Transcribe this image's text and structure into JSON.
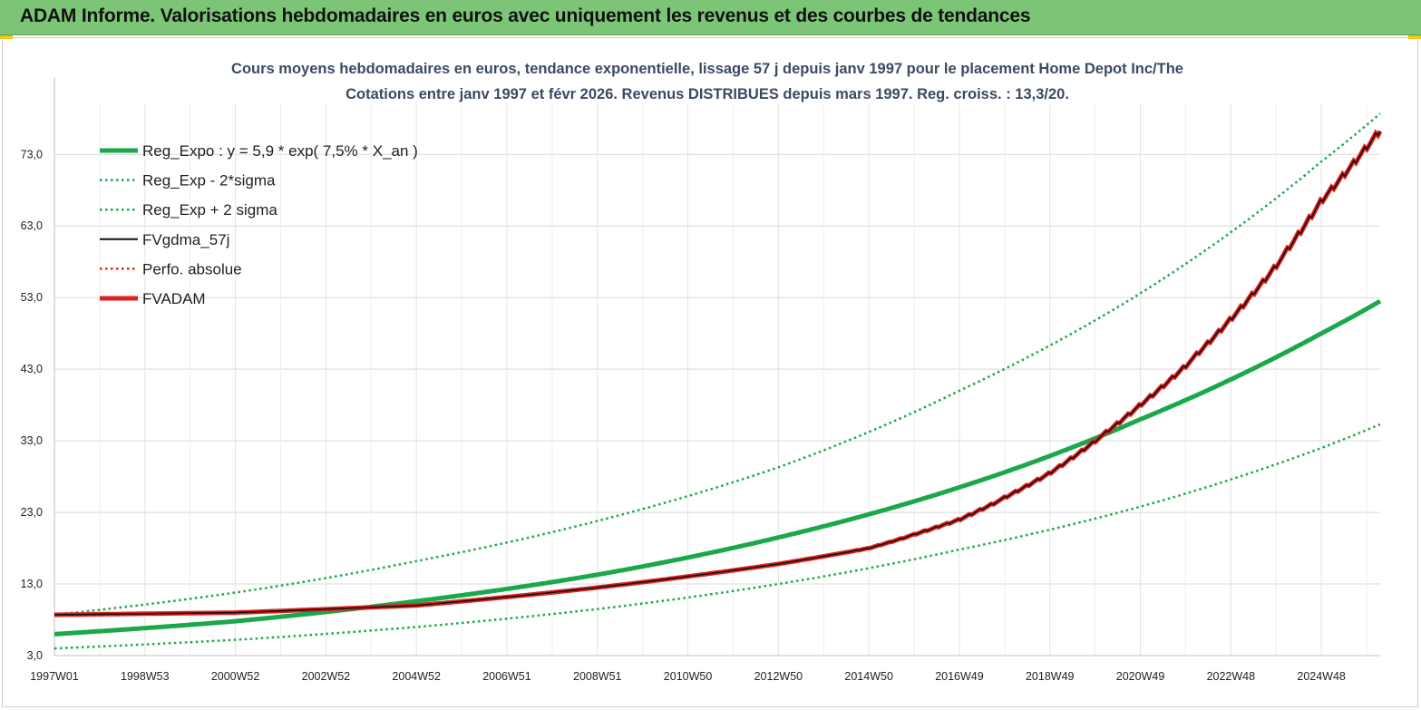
{
  "banner": {
    "title": "ADAM Informe. Valorisations hebdomadaires en euros avec uniquement les revenus et des courbes de tendances",
    "accent": "#7cc576"
  },
  "chart_data": {
    "type": "line",
    "title": "Cours moyens hebdomadaires en euros, tendance exponentielle, lissage 57 j depuis janv 1997 pour le placement Home Depot Inc/The",
    "subtitle": "Cotations entre janv 1997 et févr 2026. Revenus DISTRIBUES depuis mars 1997. Reg. croiss. : 13,3/20.",
    "xlabel": "",
    "ylabel": "",
    "ylim": [
      3,
      80
    ],
    "y_ticks": [
      "3,0",
      "13,0",
      "23,0",
      "33,0",
      "43,0",
      "53,0",
      "63,0",
      "73,0"
    ],
    "x_ticks": [
      "1997W01",
      "1998W53",
      "2000W52",
      "2002W52",
      "2004W52",
      "2006W51",
      "2008W51",
      "2010W50",
      "2012W50",
      "2014W50",
      "2016W49",
      "2018W49",
      "2020W49",
      "2022W48",
      "2024W48"
    ],
    "x_tick_years": [
      1997.0,
      1999.0,
      2001.0,
      2003.0,
      2005.0,
      2007.0,
      2009.0,
      2011.0,
      2013.0,
      2015.0,
      2017.0,
      2019.0,
      2021.0,
      2023.0,
      2025.0
    ],
    "xlim": [
      1997.0,
      2026.3
    ],
    "grid": true,
    "legend_position": "top-left",
    "series": [
      {
        "name": "Reg_Expo : y = 5,9 * exp( 7,5% *  X_an )",
        "style": "solid-thick",
        "color": "#1aa84a",
        "x": [
          1997.0,
          2001.0,
          2005.0,
          2009.0,
          2013.0,
          2017.0,
          2021.0,
          2025.0,
          2026.3
        ],
        "y": [
          6.0,
          7.8,
          10.6,
          14.3,
          19.5,
          26.5,
          36.0,
          48.0,
          52.5
        ]
      },
      {
        "name": "Reg_Exp - 2*sigma",
        "style": "dotted",
        "color": "#1aa84a",
        "x": [
          1997.0,
          2001.0,
          2005.0,
          2009.0,
          2013.0,
          2017.0,
          2021.0,
          2025.0,
          2026.3
        ],
        "y": [
          4.0,
          5.2,
          7.0,
          9.5,
          13.0,
          17.8,
          23.8,
          32.0,
          35.3
        ]
      },
      {
        "name": "Reg_Exp + 2 sigma",
        "style": "dotted",
        "color": "#1aa84a",
        "x": [
          1997.0,
          2001.0,
          2005.0,
          2009.0,
          2013.0,
          2017.0,
          2021.0,
          2025.0,
          2026.3
        ],
        "y": [
          8.7,
          11.8,
          16.2,
          21.8,
          29.3,
          40.0,
          53.6,
          72.0,
          78.7
        ]
      },
      {
        "name": "FVgdma_57j",
        "style": "solid",
        "color": "#111111",
        "x": [
          1997.0,
          2001.0,
          2005.0,
          2009.0,
          2013.0,
          2015.0,
          2017.0,
          2019.0,
          2020.0,
          2021.0,
          2022.0,
          2023.0,
          2024.0,
          2025.0,
          2026.3
        ],
        "y": [
          8.7,
          9.0,
          10.0,
          12.5,
          15.8,
          18.0,
          22.0,
          28.5,
          33.0,
          38.0,
          43.5,
          50.0,
          57.5,
          66.5,
          76.5
        ]
      },
      {
        "name": "Perfo. absolue",
        "style": "dotted",
        "color": "#e02020",
        "x": [
          1997.0,
          2001.0,
          2005.0,
          2009.0,
          2013.0,
          2015.0,
          2017.0,
          2019.0,
          2020.0,
          2021.0,
          2022.0,
          2023.0,
          2024.0,
          2025.0,
          2026.3
        ],
        "y": [
          8.7,
          9.0,
          10.0,
          12.5,
          15.8,
          18.0,
          22.0,
          28.5,
          33.0,
          38.0,
          43.5,
          50.0,
          57.5,
          66.5,
          76.5
        ]
      },
      {
        "name": "FVADAM",
        "style": "solid-thick",
        "color": "#e02020",
        "x": [
          1997.0,
          2001.0,
          2005.0,
          2009.0,
          2013.0,
          2015.0,
          2017.0,
          2019.0,
          2020.0,
          2021.0,
          2022.0,
          2023.0,
          2024.0,
          2025.0,
          2026.3
        ],
        "y": [
          8.7,
          9.0,
          10.0,
          12.5,
          15.8,
          18.0,
          22.0,
          28.5,
          33.0,
          38.0,
          43.5,
          50.0,
          57.5,
          66.5,
          76.5
        ]
      }
    ]
  }
}
